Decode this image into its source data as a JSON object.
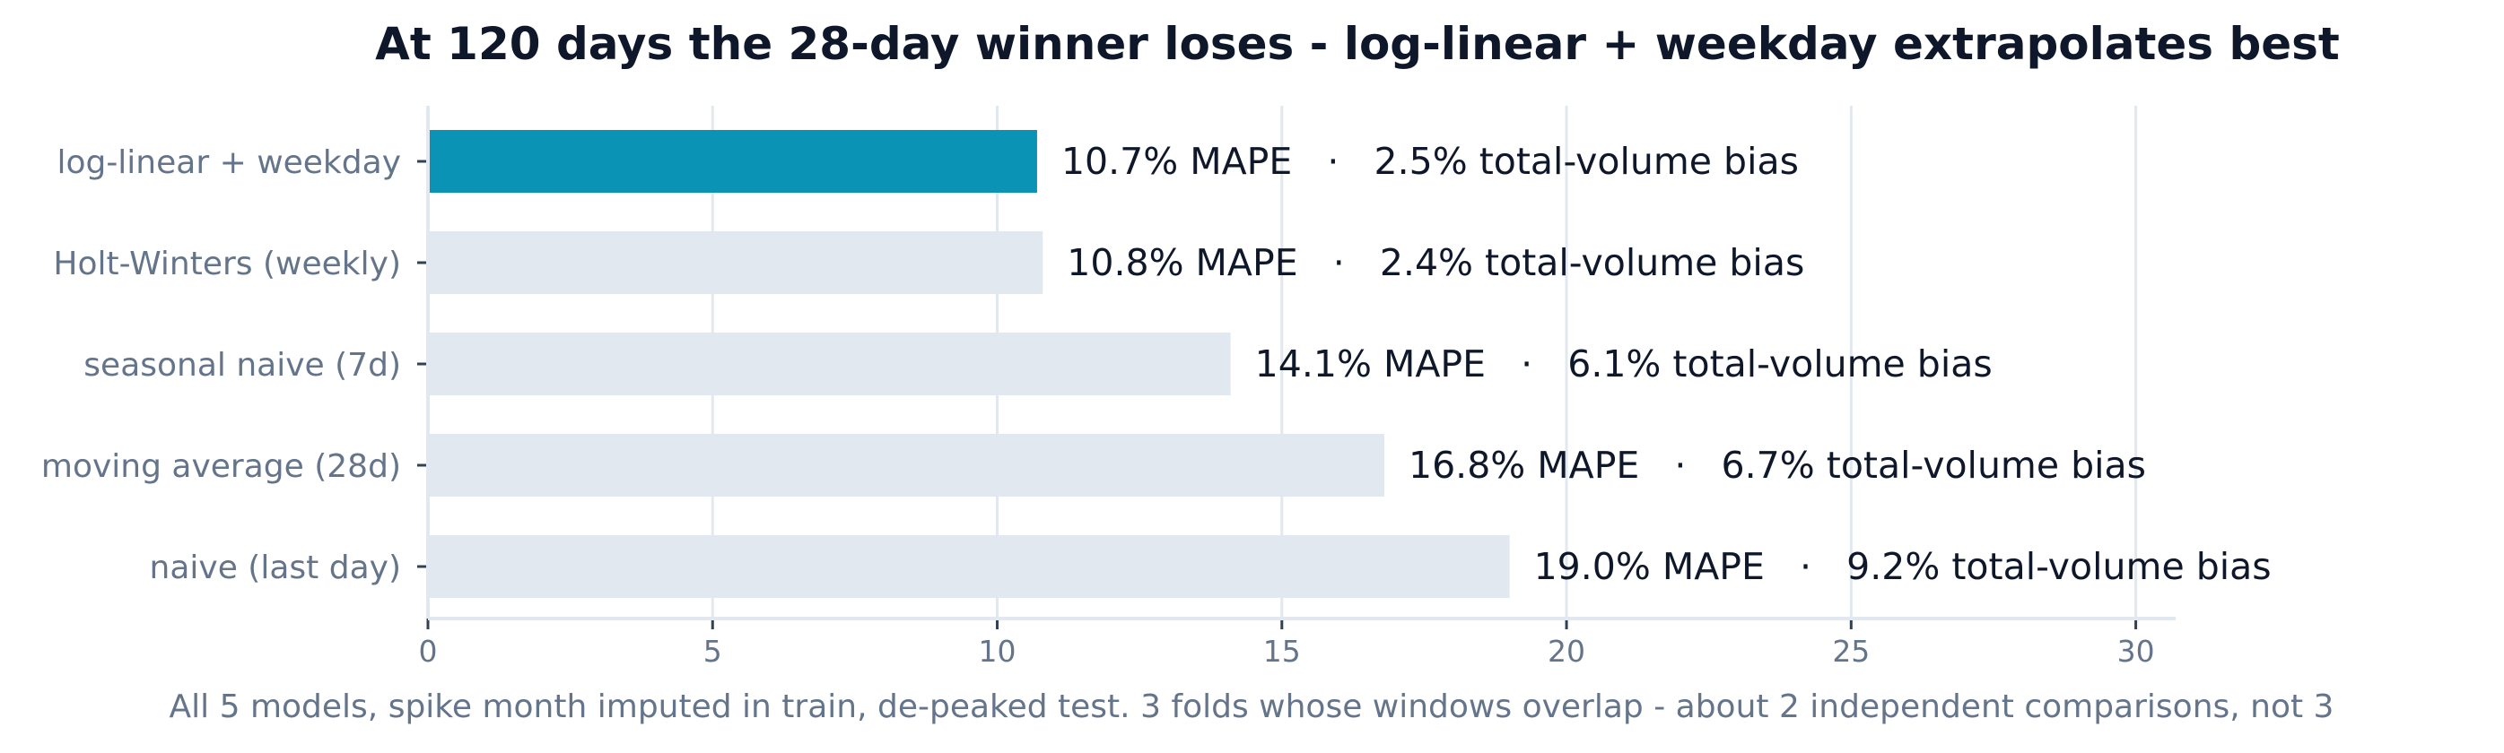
{
  "chart_data": {
    "type": "bar",
    "orientation": "horizontal",
    "title": "At 120 days the 28-day winner loses - log-linear + weekday extrapolates best",
    "caption": "All 5 models, spike month imputed in train, de-peaked test. 3 folds whose windows overlap - about 2 independent comparisons, not 3",
    "xlabel": "",
    "ylabel": "",
    "xlim": [
      0,
      30.7
    ],
    "xticks": [
      0,
      5,
      10,
      15,
      20,
      25,
      30
    ],
    "grid": "vertical",
    "categories": [
      "log-linear + weekday",
      "Holt-Winters (weekly)",
      "seasonal naive (7d)",
      "moving average (28d)",
      "naive (last day)"
    ],
    "values": [
      10.7,
      10.8,
      14.1,
      16.8,
      19.0
    ],
    "data_labels": [
      "10.7% MAPE   ·   2.5% total-volume bias",
      "10.8% MAPE   ·   2.4% total-volume bias",
      "14.1% MAPE   ·   6.1% total-volume bias",
      "16.8% MAPE   ·   6.7% total-volume bias",
      "19.0% MAPE   ·   9.2% total-volume bias"
    ],
    "highlight_index": 0,
    "colors": {
      "highlight": "#0b93b5",
      "other": "#e2e8f0",
      "grid": "#e2e8f0",
      "title": "#0f172a",
      "label": "#64748b"
    }
  }
}
